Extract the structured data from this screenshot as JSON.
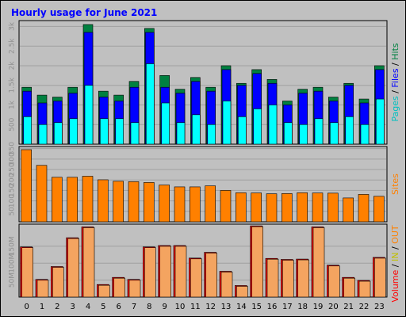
{
  "title": "Hourly usage for June 2021",
  "colors": {
    "background": "#c0c0c0",
    "title": "#0000ff",
    "hits": "#008040",
    "files": "#0000ff",
    "pages": "#00ffff",
    "sites": "#ff8000",
    "volume": "#ff0000",
    "in": "#ffff00",
    "out": "#ff8000"
  },
  "legends": {
    "top": [
      {
        "text": "Pages",
        "color": "#00c0c0"
      },
      {
        "text": " / ",
        "color": "#000000"
      },
      {
        "text": "Files",
        "color": "#0000ff"
      },
      {
        "text": " / ",
        "color": "#000000"
      },
      {
        "text": "Hits",
        "color": "#008040"
      }
    ],
    "middle": [
      {
        "text": "Sites",
        "color": "#ff8000"
      }
    ],
    "bottom": [
      {
        "text": "Volume",
        "color": "#ff0000"
      },
      {
        "text": " / ",
        "color": "#000000"
      },
      {
        "text": "IN",
        "color": "#c0c000"
      },
      {
        "text": " / ",
        "color": "#000000"
      },
      {
        "text": "OUT",
        "color": "#ff8000"
      }
    ]
  },
  "chart_data": [
    {
      "type": "bar",
      "panel": "hits-files-pages",
      "categories": [
        "0",
        "1",
        "2",
        "3",
        "4",
        "5",
        "6",
        "7",
        "8",
        "9",
        "10",
        "11",
        "12",
        "13",
        "14",
        "15",
        "16",
        "17",
        "18",
        "19",
        "20",
        "21",
        "22",
        "23"
      ],
      "series": [
        {
          "name": "Hits",
          "values": [
            1450,
            1250,
            1200,
            1450,
            3050,
            1350,
            1250,
            1600,
            2950,
            1750,
            1400,
            1700,
            1450,
            2000,
            1550,
            1900,
            1650,
            1100,
            1400,
            1450,
            1200,
            1550,
            1150,
            2000
          ]
        },
        {
          "name": "Files",
          "values": [
            1350,
            1050,
            1100,
            1300,
            2850,
            1200,
            1100,
            1450,
            2850,
            1450,
            1300,
            1600,
            1350,
            1900,
            1500,
            1800,
            1550,
            1000,
            1300,
            1350,
            1100,
            1500,
            1050,
            1900
          ]
        },
        {
          "name": "Pages",
          "values": [
            700,
            500,
            550,
            650,
            1500,
            650,
            650,
            550,
            2050,
            1050,
            550,
            750,
            500,
            1100,
            700,
            900,
            1000,
            550,
            500,
            650,
            550,
            700,
            500,
            1150
          ]
        }
      ],
      "yticks": [
        "500",
        "1k",
        "1.5k",
        "2k",
        "2.5k",
        "3k"
      ],
      "ytick_values": [
        500,
        1000,
        1500,
        2000,
        2500,
        3000
      ],
      "ylim": [
        0,
        3150
      ]
    },
    {
      "type": "bar",
      "panel": "sites",
      "categories": [
        "0",
        "1",
        "2",
        "3",
        "4",
        "5",
        "6",
        "7",
        "8",
        "9",
        "10",
        "11",
        "12",
        "13",
        "14",
        "15",
        "16",
        "17",
        "18",
        "19",
        "20",
        "21",
        "22",
        "23"
      ],
      "series": [
        {
          "name": "Sites",
          "values": [
            345,
            270,
            213,
            213,
            218,
            201,
            194,
            192,
            188,
            176,
            167,
            167,
            172,
            150,
            139,
            138,
            134,
            135,
            139,
            138,
            137,
            114,
            131,
            122
          ]
        }
      ],
      "yticks": [
        "50",
        "100",
        "150",
        "200",
        "250",
        "300",
        "350"
      ],
      "ytick_values": [
        50,
        100,
        150,
        200,
        250,
        300,
        350
      ],
      "ylim": [
        0,
        360
      ]
    },
    {
      "type": "bar",
      "panel": "volume",
      "categories": [
        "0",
        "1",
        "2",
        "3",
        "4",
        "5",
        "6",
        "7",
        "8",
        "9",
        "10",
        "11",
        "12",
        "13",
        "14",
        "15",
        "16",
        "17",
        "18",
        "19",
        "20",
        "21",
        "22",
        "23"
      ],
      "series": [
        {
          "name": "Volume",
          "values": [
            148,
            52,
            90,
            175,
            207,
            37,
            58,
            52,
            148,
            152,
            152,
            115,
            132,
            76,
            34,
            210,
            114,
            111,
            112,
            207,
            94,
            58,
            49,
            117
          ]
        }
      ],
      "yticks": [
        "50M",
        "100M",
        "150M"
      ],
      "ytick_values": [
        50,
        100,
        150
      ],
      "ylim": [
        0,
        215
      ]
    }
  ]
}
